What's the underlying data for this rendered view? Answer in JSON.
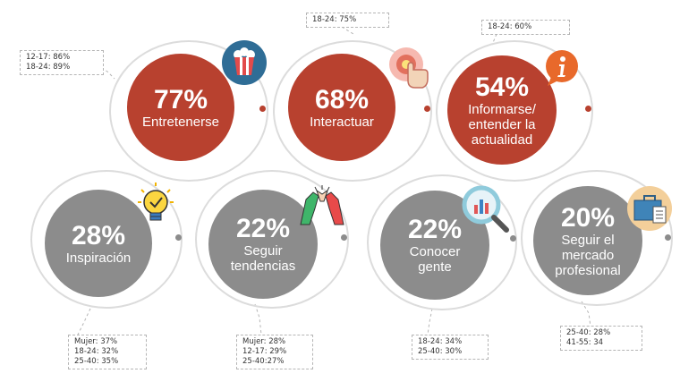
{
  "colors": {
    "accent_red": "#b8412f",
    "neutral_grey": "#8c8c8c",
    "ring": "#dcdcdc"
  },
  "items": [
    {
      "pct": "77%",
      "label": "Entretenerse",
      "icon": "popcorn-icon",
      "notes": [
        "12-17: 86%",
        "18-24: 89%"
      ]
    },
    {
      "pct": "68%",
      "label": "Interactuar",
      "icon": "touch-hand-icon",
      "notes": [
        "18-24: 75%"
      ]
    },
    {
      "pct": "54%",
      "label": "Informarse/ entender la actualidad",
      "icon": "info-icon",
      "notes": [
        "18-24: 60%"
      ]
    },
    {
      "pct": "28%",
      "label": "Inspiración",
      "icon": "lightbulb-icon",
      "notes": [
        "Mujer: 37%",
        "18-24: 32%",
        "25-40: 35%"
      ]
    },
    {
      "pct": "22%",
      "label": "Seguir tendencias",
      "icon": "high-five-icon",
      "notes": [
        "Mujer: 28%",
        "12-17: 29%",
        "25-40:27%"
      ]
    },
    {
      "pct": "22%",
      "label": "Conocer gente",
      "icon": "magnifier-chart-icon",
      "notes": [
        "18-24: 34%",
        "25-40: 30%"
      ]
    },
    {
      "pct": "20%",
      "label": "Seguir el mercado profesional",
      "icon": "briefcase-icon",
      "notes": [
        "25-40: 28%",
        "41-55: 34"
      ]
    }
  ]
}
